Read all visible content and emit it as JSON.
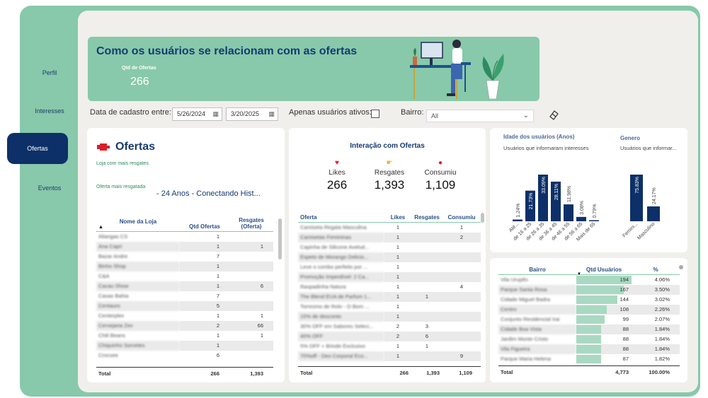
{
  "nav": {
    "items": [
      "Perfil",
      "Interesses",
      "Ofertas",
      "Eventos"
    ],
    "active": "Ofertas"
  },
  "header": {
    "title": "Como os usuários se relacionam com as ofertas",
    "kpi_label": "Qtd de Ofertas",
    "kpi_value": "266"
  },
  "filters": {
    "date_label": "Data de cadastro entre:",
    "date_start": "5/26/2024",
    "date_end": "3/20/2025",
    "active_label": "Apenas usuários ativos:",
    "bairro_label": "Bairro:",
    "bairro_value": "All"
  },
  "ofertas": {
    "title": "Ofertas",
    "subtitle": "Loja com mais resgates",
    "top_offer_label": "Oferta mais resgatada",
    "top_offer_value": "- 24 Anos - Conectando Hist...",
    "columns": [
      "Nome da Loja",
      "Qtd Ofertas",
      "Resgates (Oferta)"
    ],
    "rows": [
      [
        "Aliangas CS",
        "1",
        ""
      ],
      [
        "Ana Capri",
        "1",
        "1"
      ],
      [
        "Bazar Andre",
        "7",
        ""
      ],
      [
        "Binho Shop",
        "1",
        ""
      ],
      [
        "C&A",
        "1",
        ""
      ],
      [
        "Cacau Show",
        "1",
        "6"
      ],
      [
        "Casas Bahia",
        "7",
        ""
      ],
      [
        "Centauro",
        "5",
        ""
      ],
      [
        "Centerplex",
        "1",
        "1"
      ],
      [
        "Cervejaria Zev",
        "2",
        "66"
      ],
      [
        "Chili Beans",
        "1",
        "1"
      ],
      [
        "Chiquinho Sorvetes",
        "1",
        ""
      ],
      [
        "Crocsee",
        "6",
        ""
      ]
    ],
    "total": [
      "Total",
      "266",
      "1,393"
    ]
  },
  "interacao": {
    "title": "Interação com Ofertas",
    "kpis": [
      {
        "label": "Likes",
        "value": "266",
        "icon": "heart-icon",
        "color": "#e0202a"
      },
      {
        "label": "Resgates",
        "value": "1,393",
        "icon": "pointing-hand-icon",
        "color": "#f2b233"
      },
      {
        "label": "Consumiu",
        "value": "1,109",
        "icon": "pin-icon",
        "color": "#e0202a"
      }
    ],
    "columns": [
      "Oferta",
      "Likes",
      "Resgates",
      "Consumiu"
    ],
    "rows": [
      [
        "Camiseta Regata Masculina",
        "1",
        "",
        "1"
      ],
      [
        "Camisetas Femininas",
        "1",
        "",
        "2"
      ],
      [
        "Capinha de Silicone Avelud...",
        "1",
        "",
        ""
      ],
      [
        "Espeto de Morango Delicio...",
        "1",
        "",
        ""
      ],
      [
        "Leve o combo perfeito por ...",
        "1",
        "",
        ""
      ],
      [
        "Promoção Imperdível: 2 Ca...",
        "1",
        "",
        ""
      ],
      [
        "Raspadinha Natura",
        "1",
        "",
        "4"
      ],
      [
        "The Blend EUA de Parfum 1...",
        "1",
        "1",
        ""
      ],
      [
        "Torresmo de Rolo - O Bom ...",
        "1",
        "",
        ""
      ],
      [
        "15% de desconto",
        "1",
        "",
        ""
      ],
      [
        "30% OFF em Sabores Seleci...",
        "2",
        "3",
        ""
      ],
      [
        "40% OFF",
        "2",
        "6",
        ""
      ],
      [
        "5% OFF + Brinde Exclusivo",
        "1",
        "1",
        ""
      ],
      [
        "70%off - Deo Corporal Eco...",
        "1",
        "",
        "9"
      ]
    ],
    "total": [
      "Total",
      "266",
      "1,393",
      "1,109"
    ]
  },
  "idade": {
    "title": "Idade dos usuários (Anos)",
    "subtitle": "Usuários que informaram interesses"
  },
  "genero": {
    "title": "Genero",
    "subtitle": "Usuários que informar..."
  },
  "chart_data": [
    {
      "type": "bar",
      "title": "Idade dos usuários (Anos)",
      "categories": [
        "Até...",
        "de 16 a 25",
        "de 26 a 35",
        "de 36 a 45",
        "de 46 a 55",
        "de 56 a 65",
        "Mais de 65"
      ],
      "values": [
        1.24,
        21.73,
        33.09,
        28.11,
        11.98,
        3.08,
        0.79
      ],
      "labels": [
        "1.24%",
        "21.73%",
        "33.09%",
        "28.11%",
        "11.98%",
        "3.08%",
        "0.79%"
      ],
      "ylim": [
        0,
        33.09
      ],
      "color": "#0d3068"
    },
    {
      "type": "bar",
      "title": "Genero",
      "categories": [
        "Femini...",
        "Masculino"
      ],
      "values": [
        75.83,
        24.17
      ],
      "labels": [
        "75.83%",
        "24.17%"
      ],
      "ylim": [
        0,
        75.83
      ],
      "color": "#0d3068"
    }
  ],
  "bairros": {
    "columns": [
      "Bairro",
      "Qtd Usuários",
      "%"
    ],
    "rows": [
      [
        "Vila Urupês",
        "194",
        "4.06%"
      ],
      [
        "Parque Santa Rosa",
        "167",
        "3.50%"
      ],
      [
        "Cidade Miguel Badra",
        "144",
        "3.02%"
      ],
      [
        "Centro",
        "108",
        "2.26%"
      ],
      [
        "Conjunto Residencial Irai",
        "99",
        "2.07%"
      ],
      [
        "Cidade Boa Vista",
        "88",
        "1.84%"
      ],
      [
        "Jardim Monte Cristo",
        "88",
        "1.84%"
      ],
      [
        "Vila Figueira",
        "88",
        "1.84%"
      ],
      [
        "Parque Maria Helena",
        "87",
        "1.82%"
      ]
    ],
    "bar_values": [
      194,
      167,
      144,
      108,
      99,
      88,
      88,
      88,
      87
    ],
    "bar_max": 194,
    "total": [
      "Total",
      "4,773",
      "100.00%"
    ]
  }
}
